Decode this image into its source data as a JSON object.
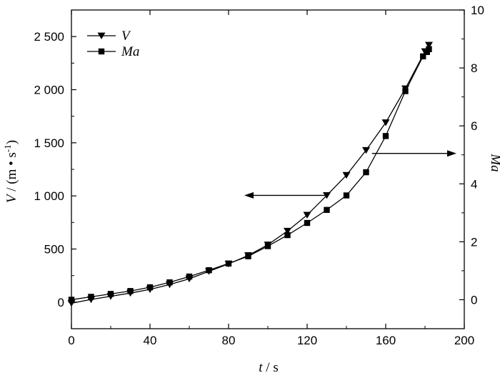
{
  "chart_data": {
    "type": "line",
    "title": "",
    "x": {
      "label_var": "t",
      "label_unit": " / s",
      "range": [
        0,
        200
      ],
      "ticks": [
        0,
        40,
        80,
        120,
        160,
        200
      ],
      "tick_labels": [
        "0",
        "40",
        "80",
        "120",
        "160",
        "200"
      ]
    },
    "y_left": {
      "label_var": "V",
      "label_unit": " / (m • s",
      "label_sup": "-1",
      "label_close": ")",
      "range": [
        -250,
        2750
      ],
      "ticks": [
        0,
        500,
        1000,
        1500,
        2000,
        2500
      ],
      "tick_labels": [
        "0",
        "500",
        "1 000",
        "1 500",
        "2 000",
        "2 500"
      ]
    },
    "y_right": {
      "label": "Ma",
      "range": [
        -1,
        10
      ],
      "ticks": [
        0,
        2,
        4,
        6,
        8,
        10
      ],
      "tick_labels": [
        "0",
        "2",
        "4",
        "6",
        "8",
        "10"
      ]
    },
    "legend": {
      "placement": "top-left"
    },
    "series": [
      {
        "name": "V",
        "axis": "left",
        "marker": "triangle-down",
        "x": [
          0,
          10,
          20,
          30,
          40,
          50,
          60,
          70,
          80,
          90,
          100,
          110,
          120,
          130,
          140,
          150,
          160,
          170,
          180,
          182
        ],
        "values": [
          -10,
          25,
          55,
          85,
          120,
          165,
          220,
          290,
          360,
          440,
          540,
          670,
          820,
          1005,
          1195,
          1430,
          1690,
          2010,
          2360,
          2420
        ]
      },
      {
        "name": "Ma",
        "axis": "right",
        "marker": "square",
        "x": [
          0,
          10,
          20,
          30,
          40,
          50,
          60,
          70,
          80,
          90,
          100,
          110,
          120,
          130,
          140,
          150,
          160,
          170,
          179,
          181,
          182
        ],
        "values": [
          0.0,
          0.1,
          0.2,
          0.3,
          0.43,
          0.6,
          0.8,
          1.02,
          1.25,
          1.5,
          1.85,
          2.23,
          2.65,
          3.1,
          3.6,
          4.4,
          5.65,
          7.2,
          8.4,
          8.55,
          8.65
        ]
      }
    ],
    "annotations": [
      {
        "type": "arrow",
        "direction": "left",
        "from": [
          130,
          1005
        ],
        "to": [
          88,
          1005
        ],
        "axis": "left"
      },
      {
        "type": "arrow",
        "direction": "right",
        "from": [
          153,
          5.05
        ],
        "to": [
          196,
          5.05
        ],
        "axis": "right"
      }
    ]
  }
}
